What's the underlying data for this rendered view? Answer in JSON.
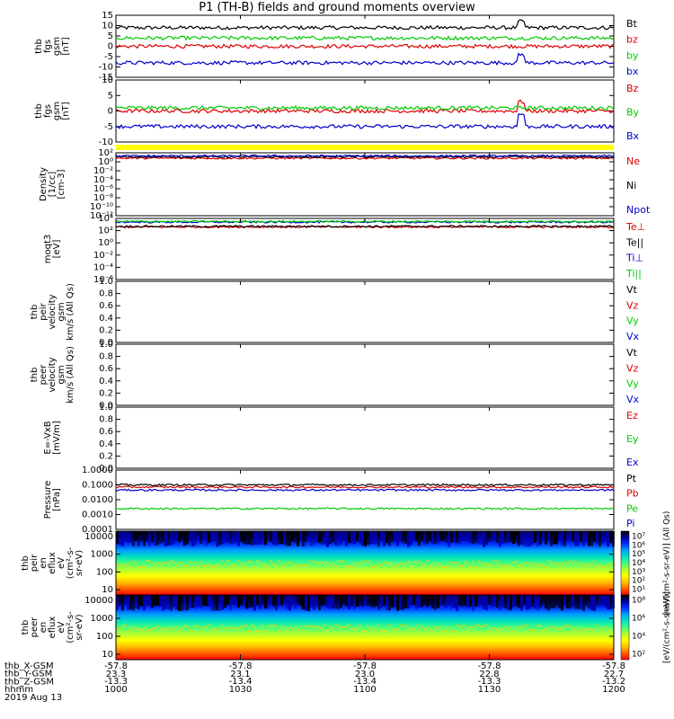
{
  "title": "P1 (TH-B) fields and ground moments overview",
  "colors": {
    "black": "#000000",
    "red": "#dd0000",
    "green": "#00cc00",
    "blue": "#0000cc",
    "yellow": "#ffff00"
  },
  "chart_data": [
    {
      "type": "line",
      "ylabel": [
        "thb",
        "fgs",
        "gsm",
        "[nT]"
      ],
      "ylim": [
        -15,
        15
      ],
      "yticks": [
        "15",
        "10",
        "5",
        "0",
        "-5",
        "-10",
        "-15"
      ],
      "ytick_values": [
        15,
        10,
        5,
        0,
        -5,
        -10,
        -15
      ],
      "series": [
        {
          "name": "Bt",
          "color": "#000000",
          "level": 9
        },
        {
          "name": "bz",
          "color": "#dd0000",
          "level": 0
        },
        {
          "name": "by",
          "color": "#00cc00",
          "level": 4
        },
        {
          "name": "bx",
          "color": "#0000cc",
          "level": -8
        }
      ]
    },
    {
      "type": "line",
      "ylabel": [
        "thb",
        "fgs",
        "gsm",
        "[nT]"
      ],
      "ylim": [
        -10,
        10
      ],
      "yticks": [
        "10",
        "5",
        "0",
        "-5",
        "-10"
      ],
      "ytick_values": [
        10,
        5,
        0,
        -5,
        -10
      ],
      "series": [
        {
          "name": "Bz",
          "color": "#dd0000",
          "level": 0
        },
        {
          "name": "By",
          "color": "#00cc00",
          "level": 1
        },
        {
          "name": "Bx",
          "color": "#0000cc",
          "level": -5
        }
      ]
    },
    {
      "type": "line",
      "ylabel": [
        "Density",
        "[1/cc]",
        "[cm-3]"
      ],
      "log": true,
      "ylim": [
        1e-12,
        100
      ],
      "yticks": [
        "10²",
        "10⁰",
        "10⁻²",
        "10⁻⁴",
        "10⁻⁶",
        "10⁻⁸",
        "10⁻¹⁰",
        "10⁻¹²"
      ],
      "ytick_values": [
        2,
        0,
        -2,
        -4,
        -6,
        -8,
        -10,
        -12
      ],
      "series": [
        {
          "name": "Ne",
          "color": "#dd0000",
          "level": 0.8
        },
        {
          "name": "Ni",
          "color": "#000000",
          "level": 1.1
        },
        {
          "name": "Npot",
          "color": "#0000cc",
          "level": 1.3
        }
      ]
    },
    {
      "type": "line",
      "ylabel": [
        "moqt3",
        "[eV]"
      ],
      "log": true,
      "ylim": [
        1e-06,
        10000
      ],
      "yticks": [
        "10⁴",
        "10²",
        "10⁰",
        "10⁻²",
        "10⁻⁴",
        "10⁻⁶"
      ],
      "ytick_values": [
        4,
        2,
        0,
        -2,
        -4,
        -6
      ],
      "series": [
        {
          "name": "Te⊥",
          "color": "#dd0000",
          "level": 2.6
        },
        {
          "name": "Te||",
          "color": "#000000",
          "level": 2.7
        },
        {
          "name": "Ti⊥",
          "color": "#0000cc",
          "level": 3.4
        },
        {
          "name": "Ti||",
          "color": "#00cc00",
          "level": 3.5
        }
      ]
    },
    {
      "type": "line",
      "ylabel": [
        "thb",
        "peir",
        "velocity",
        "gsm",
        "km/s (All Qs)"
      ],
      "ylim": [
        0,
        1
      ],
      "yticks": [
        "1.0",
        "0.8",
        "0.6",
        "0.4",
        "0.2",
        "0.0"
      ],
      "ytick_values": [
        1,
        0.8,
        0.6,
        0.4,
        0.2,
        0
      ],
      "series": [
        {
          "name": "Vt",
          "color": "#000000"
        },
        {
          "name": "Vz",
          "color": "#dd0000"
        },
        {
          "name": "Vy",
          "color": "#00cc00"
        },
        {
          "name": "Vx",
          "color": "#0000cc"
        }
      ]
    },
    {
      "type": "line",
      "ylabel": [
        "thb",
        "peer",
        "velocity",
        "gsm",
        "km/s (All Qs)"
      ],
      "ylim": [
        0,
        1
      ],
      "yticks": [
        "1.0",
        "0.8",
        "0.6",
        "0.4",
        "0.2",
        "0.0"
      ],
      "ytick_values": [
        1,
        0.8,
        0.6,
        0.4,
        0.2,
        0
      ],
      "series": [
        {
          "name": "Vt",
          "color": "#000000"
        },
        {
          "name": "Vz",
          "color": "#dd0000"
        },
        {
          "name": "Vy",
          "color": "#00cc00"
        },
        {
          "name": "Vx",
          "color": "#0000cc"
        }
      ]
    },
    {
      "type": "line",
      "ylabel": [
        "E=-VxB",
        "[mV/m]"
      ],
      "ylim": [
        0,
        1
      ],
      "yticks": [
        "1.0",
        "0.8",
        "0.6",
        "0.4",
        "0.2",
        "0.0"
      ],
      "ytick_values": [
        1,
        0.8,
        0.6,
        0.4,
        0.2,
        0
      ],
      "series": [
        {
          "name": "Ez",
          "color": "#dd0000"
        },
        {
          "name": "Ey",
          "color": "#00cc00"
        },
        {
          "name": "Ex",
          "color": "#0000cc"
        }
      ]
    },
    {
      "type": "line",
      "ylabel": [
        "Pressure",
        "[nPa]"
      ],
      "log": true,
      "ylim": [
        0.0001,
        1
      ],
      "yticks": [
        "1.0000",
        "0.1000",
        "0.0100",
        "0.0010",
        "0.0001"
      ],
      "ytick_values": [
        0,
        -1,
        -2,
        -3,
        -4
      ],
      "series": [
        {
          "name": "Pt",
          "color": "#000000",
          "level": -1.0
        },
        {
          "name": "Pb",
          "color": "#dd0000",
          "level": -1.15
        },
        {
          "name": "Pe",
          "color": "#00cc00",
          "level": -2.6
        },
        {
          "name": "Pi",
          "color": "#0000cc",
          "level": -1.35
        }
      ]
    },
    {
      "type": "heatmap",
      "ylabel": [
        "thb",
        "peir",
        "en",
        "eflux",
        "eV",
        "(cm²-s-",
        "sr-eV)"
      ],
      "log": true,
      "ylim": [
        5,
        20000
      ],
      "yticks": [
        "10000",
        "1000",
        "100",
        "10"
      ],
      "ytick_values": [
        4,
        3,
        2,
        1
      ],
      "colorbar": {
        "ticks": [
          "10⁷",
          "10⁶",
          "10⁵",
          "10⁴",
          "10³",
          "10²",
          "10¹"
        ],
        "label": "[eV/(cm²-s-sr-eV)] (All Qs)"
      }
    },
    {
      "type": "heatmap",
      "ylabel": [
        "thb",
        "peer",
        "en",
        "eflux",
        "eV",
        "(cm²-s-",
        "sr-eV)"
      ],
      "log": true,
      "ylim": [
        5,
        20000
      ],
      "yticks": [
        "10000",
        "1000",
        "100",
        "10"
      ],
      "ytick_values": [
        4,
        3,
        2,
        1
      ],
      "colorbar": {
        "ticks": [
          "10⁸",
          "10⁶",
          "10⁴",
          "10²"
        ],
        "label": "[eV/(cm²-s-sr-eV)]"
      }
    }
  ],
  "xaxis": {
    "row_labels": [
      "thb_X-GSM",
      "thb_Y-GSM",
      "thb_Z-GSM",
      "hhmm",
      "2019 Aug 13"
    ],
    "columns": [
      {
        "x": "-57.8",
        "y": "23.3",
        "z": "-13.3",
        "hhmm": "1000"
      },
      {
        "x": "-57.8",
        "y": "23.1",
        "z": "-13.4",
        "hhmm": "1030"
      },
      {
        "x": "-57.8",
        "y": "23.0",
        "z": "-13.4",
        "hhmm": "1100"
      },
      {
        "x": "-57.8",
        "y": "22.8",
        "z": "-13.3",
        "hhmm": "1130"
      },
      {
        "x": "-57.8",
        "y": "22.7",
        "z": "-13.2",
        "hhmm": "1200"
      }
    ]
  }
}
